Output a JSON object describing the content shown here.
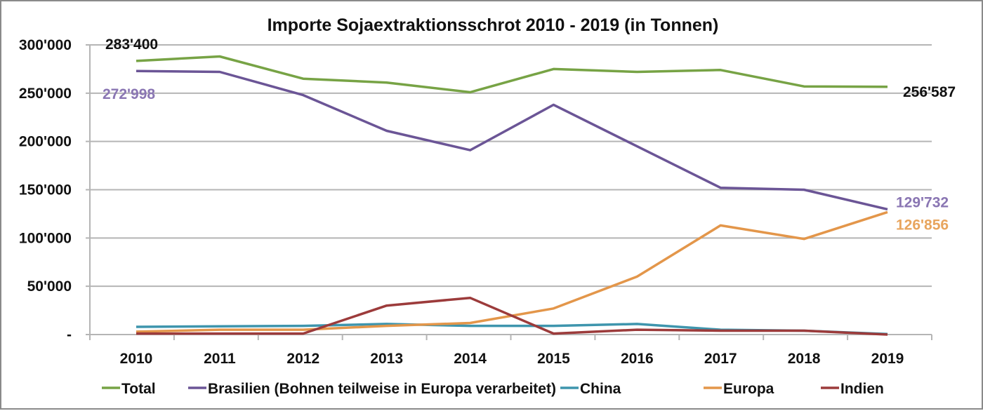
{
  "chart_data": {
    "type": "line",
    "title": "Importe Sojaextraktionsschrot 2010 - 2019 (in Tonnen)",
    "xlabel": "",
    "ylabel": "",
    "x": [
      "2010",
      "2011",
      "2012",
      "2013",
      "2014",
      "2015",
      "2016",
      "2017",
      "2018",
      "2019"
    ],
    "ylim": [
      0,
      300000
    ],
    "yticks": [
      0,
      50000,
      100000,
      150000,
      200000,
      250000,
      300000
    ],
    "ytick_labels": [
      "-",
      "50'000",
      "100'000",
      "150'000",
      "200'000",
      "250'000",
      "300'000"
    ],
    "grid": true,
    "legend_position": "bottom",
    "series": [
      {
        "name": "Total",
        "color": "#77a345",
        "values": [
          283400,
          288000,
          265000,
          261000,
          251000,
          275000,
          272000,
          274000,
          257000,
          256587
        ]
      },
      {
        "name": "Brasilien (Bohnen teilweise in Europa verarbeitet)",
        "color": "#6b5596",
        "values": [
          272998,
          272000,
          248000,
          211000,
          191000,
          238000,
          195000,
          152000,
          150000,
          129732
        ]
      },
      {
        "name": "China",
        "color": "#3e95ad",
        "values": [
          8000,
          8500,
          9000,
          11000,
          9000,
          9000,
          11000,
          5000,
          4000,
          500
        ]
      },
      {
        "name": "Europa",
        "color": "#e3964a",
        "values": [
          3000,
          5000,
          5000,
          9000,
          12000,
          27000,
          60000,
          113000,
          99000,
          126856
        ]
      },
      {
        "name": "Indien",
        "color": "#9c3b3b",
        "values": [
          1000,
          1000,
          1000,
          30000,
          38000,
          1000,
          5000,
          4000,
          4000,
          0
        ]
      }
    ],
    "annotations": [
      {
        "text": "283'400",
        "series": "Total",
        "year": "2010",
        "color": "#111111"
      },
      {
        "text": "272'998",
        "series": "Brasilien (Bohnen teilweise in Europa verarbeitet)",
        "year": "2010",
        "color": "#8a76b3"
      },
      {
        "text": "256'587",
        "series": "Total",
        "year": "2019",
        "color": "#111111"
      },
      {
        "text": "129'732",
        "series": "Brasilien (Bohnen teilweise in Europa verarbeitet)",
        "year": "2019",
        "color": "#8a76b3"
      },
      {
        "text": "126'856",
        "series": "Europa",
        "year": "2019",
        "color": "#e8a55e"
      }
    ]
  }
}
